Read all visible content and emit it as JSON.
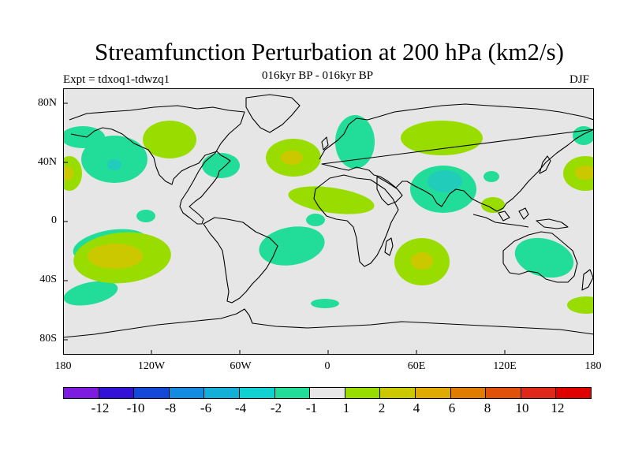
{
  "title": "Streamfunction Perturbation at 200 hPa (km2/s)",
  "left_subtitle": "Expt = tdxoq1-tdwzq1",
  "center_subtitle": "016kyr BP - 016kyr BP",
  "right_subtitle": "DJF",
  "map": {
    "lat_tick_labels": [
      "80N",
      "40N",
      "0",
      "40S",
      "80S"
    ],
    "lon_tick_labels": [
      "180",
      "120W",
      "60W",
      "0",
      "60E",
      "120E",
      "180"
    ],
    "colors": {
      "background": "#e6e6e6",
      "neg_1_to_2": "#22dd99",
      "neg_2_to_4": "#22ccbb",
      "pos_1_to_2": "#99dd00",
      "pos_2_to_4": "#ccc800",
      "land_outline": "#000000"
    }
  },
  "colorbar": {
    "labels": [
      "-12",
      "-10",
      "-8",
      "-6",
      "-4",
      "-2",
      "-1",
      "1",
      "2",
      "4",
      "6",
      "8",
      "10",
      "12"
    ],
    "colors": [
      "#7d1be0",
      "#3411d6",
      "#1448d8",
      "#128be0",
      "#12b0d8",
      "#10d2d0",
      "#22dd99",
      "#e6e6e6",
      "#99dd00",
      "#ccc800",
      "#e0aa00",
      "#e07c00",
      "#e0520a",
      "#e0281a",
      "#e00000"
    ]
  }
}
